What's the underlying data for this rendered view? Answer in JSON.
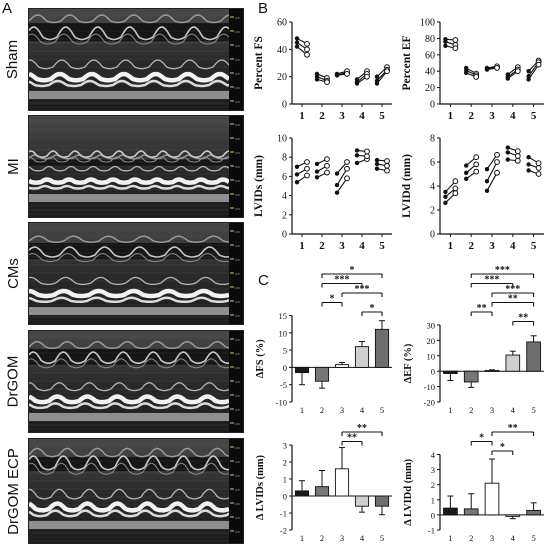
{
  "panels": {
    "a": "A",
    "b": "B",
    "c": "C"
  },
  "echo_images": [
    {
      "label": "Sham"
    },
    {
      "label": "MI"
    },
    {
      "label": "CMs"
    },
    {
      "label": "DrGOM"
    },
    {
      "label": "DrGOM ECP"
    }
  ],
  "chart_data": [
    {
      "type": "scatter",
      "panel": "B",
      "ylabel": "Percent FS",
      "ylim": [
        0,
        60
      ],
      "yticks": [
        0,
        20,
        40,
        60
      ],
      "categories": [
        "1",
        "2",
        "3",
        "4",
        "5"
      ],
      "pairs": [
        {
          "group": 1,
          "before": [
            48,
            45,
            42
          ],
          "after": [
            44,
            40,
            36
          ]
        },
        {
          "group": 2,
          "before": [
            22,
            20,
            18
          ],
          "after": [
            19,
            17,
            16
          ]
        },
        {
          "group": 3,
          "before": [
            21,
            22,
            21
          ],
          "after": [
            23,
            24,
            22
          ]
        },
        {
          "group": 4,
          "before": [
            18,
            16,
            15
          ],
          "after": [
            24,
            22,
            20
          ]
        },
        {
          "group": 5,
          "before": [
            20,
            17,
            15
          ],
          "after": [
            27,
            25,
            24
          ]
        }
      ]
    },
    {
      "type": "scatter",
      "panel": "B",
      "ylabel": "Percent EF",
      "ylim": [
        0,
        100
      ],
      "yticks": [
        0,
        20,
        40,
        60,
        80,
        100
      ],
      "categories": [
        "1",
        "2",
        "3",
        "4",
        "5"
      ],
      "pairs": [
        {
          "group": 1,
          "before": [
            79,
            76,
            71
          ],
          "after": [
            78,
            72,
            68
          ]
        },
        {
          "group": 2,
          "before": [
            44,
            41,
            38
          ],
          "after": [
            37,
            35,
            33
          ]
        },
        {
          "group": 3,
          "before": [
            43,
            44,
            42
          ],
          "after": [
            45,
            46,
            44
          ]
        },
        {
          "group": 4,
          "before": [
            36,
            33,
            31
          ],
          "after": [
            45,
            42,
            40
          ]
        },
        {
          "group": 5,
          "before": [
            40,
            34,
            30
          ],
          "after": [
            53,
            51,
            48
          ]
        }
      ]
    },
    {
      "type": "scatter",
      "panel": "B",
      "ylabel": "LVIDs (mm)",
      "ylim": [
        0,
        10
      ],
      "yticks": [
        0,
        2,
        4,
        6,
        8,
        10
      ],
      "categories": [
        "1",
        "2",
        "3",
        "4",
        "5"
      ],
      "pairs": [
        {
          "group": 1,
          "before": [
            5.4,
            6.2,
            7.0
          ],
          "after": [
            6.1,
            6.8,
            7.5
          ]
        },
        {
          "group": 2,
          "before": [
            5.9,
            6.5,
            7.3
          ],
          "after": [
            6.4,
            7.1,
            7.8
          ]
        },
        {
          "group": 3,
          "before": [
            4.3,
            5.1,
            6.3
          ],
          "after": [
            5.8,
            6.8,
            7.5
          ]
        },
        {
          "group": 4,
          "before": [
            7.4,
            8.2,
            8.7
          ],
          "after": [
            7.8,
            8.1,
            8.6
          ]
        },
        {
          "group": 5,
          "before": [
            7.7,
            7.3,
            6.8
          ],
          "after": [
            7.6,
            7.1,
            6.6
          ]
        }
      ]
    },
    {
      "type": "scatter",
      "panel": "B",
      "ylabel": "LVIDd (mm)",
      "ylim": [
        0,
        8
      ],
      "yticks": [
        0,
        2,
        4,
        6,
        8
      ],
      "categories": [
        "1",
        "2",
        "3",
        "4",
        "5"
      ],
      "pairs": [
        {
          "group": 1,
          "before": [
            2.6,
            3.1,
            3.5
          ],
          "after": [
            3.4,
            3.8,
            4.4
          ]
        },
        {
          "group": 2,
          "before": [
            4.6,
            5.1,
            5.7
          ],
          "after": [
            5.2,
            5.8,
            6.4
          ]
        },
        {
          "group": 3,
          "before": [
            3.6,
            4.4,
            5.4
          ],
          "after": [
            5.1,
            6.0,
            6.6
          ]
        },
        {
          "group": 4,
          "before": [
            7.2,
            6.8,
            6.2
          ],
          "after": [
            6.9,
            6.5,
            6.1
          ]
        },
        {
          "group": 5,
          "before": [
            6.4,
            5.8,
            5.3
          ],
          "after": [
            5.9,
            5.5,
            5.0
          ]
        }
      ]
    },
    {
      "type": "bar",
      "panel": "C",
      "ylabel": "ΔFS (%)",
      "ylim": [
        -10,
        15
      ],
      "yticks": [
        -10,
        -5,
        0,
        5,
        10,
        15
      ],
      "categories": [
        "1",
        "2",
        "3",
        "4",
        "5"
      ],
      "values": [
        -1.5,
        -4.0,
        0.8,
        6.0,
        11.0
      ],
      "errors": [
        3.5,
        2.0,
        0.6,
        1.5,
        2.5
      ],
      "colors": [
        "#1a1a1a",
        "#777777",
        "#ffffff",
        "#cfcfcf",
        "#6e6e6e"
      ],
      "significance": [
        {
          "from": 2,
          "to": 3,
          "label": "*"
        },
        {
          "from": 2,
          "to": 4,
          "label": "***"
        },
        {
          "from": 2,
          "to": 5,
          "label": "*"
        },
        {
          "from": 3,
          "to": 5,
          "label": "***"
        },
        {
          "from": 4,
          "to": 5,
          "label": "*"
        }
      ]
    },
    {
      "type": "bar",
      "panel": "C",
      "ylabel": "ΔEF (%)",
      "ylim": [
        -20,
        30
      ],
      "yticks": [
        -20,
        -10,
        0,
        10,
        20,
        30
      ],
      "categories": [
        "1",
        "2",
        "3",
        "4",
        "5"
      ],
      "values": [
        -1.5,
        -7.0,
        0.5,
        10.5,
        19.0
      ],
      "errors": [
        4.5,
        3.5,
        0.4,
        2.5,
        4.0
      ],
      "colors": [
        "#1a1a1a",
        "#777777",
        "#ffffff",
        "#cfcfcf",
        "#6e6e6e"
      ],
      "significance": [
        {
          "from": 2,
          "to": 3,
          "label": "**"
        },
        {
          "from": 2,
          "to": 4,
          "label": "***"
        },
        {
          "from": 2,
          "to": 5,
          "label": "***"
        },
        {
          "from": 3,
          "to": 5,
          "label": "**"
        },
        {
          "from": 3,
          "to": 5,
          "label": "***"
        },
        {
          "from": 4,
          "to": 5,
          "label": "**"
        }
      ]
    },
    {
      "type": "bar",
      "panel": "C",
      "ylabel": "Δ LVIDs (mm)",
      "ylim": [
        -2,
        3
      ],
      "yticks": [
        -2,
        -1,
        0,
        1,
        2,
        3
      ],
      "categories": [
        "1",
        "2",
        "3",
        "4",
        "5"
      ],
      "values": [
        0.3,
        0.55,
        1.6,
        -0.6,
        -0.6
      ],
      "errors": [
        0.6,
        0.95,
        1.25,
        0.35,
        0.5
      ],
      "colors": [
        "#1a1a1a",
        "#777777",
        "#ffffff",
        "#cfcfcf",
        "#6e6e6e"
      ],
      "significance": [
        {
          "from": 3,
          "to": 4,
          "label": "**"
        },
        {
          "from": 3,
          "to": 5,
          "label": "**"
        }
      ]
    },
    {
      "type": "bar",
      "panel": "C",
      "ylabel": "Δ LVIDd (mm)",
      "ylim": [
        -1,
        4
      ],
      "yticks": [
        -1,
        0,
        1,
        2,
        3,
        4
      ],
      "categories": [
        "1",
        "2",
        "3",
        "4",
        "5"
      ],
      "values": [
        0.45,
        0.4,
        2.1,
        -0.1,
        0.3
      ],
      "errors": [
        0.8,
        1.0,
        1.6,
        0.15,
        0.5
      ],
      "colors": [
        "#1a1a1a",
        "#777777",
        "#ffffff",
        "#cfcfcf",
        "#6e6e6e"
      ],
      "significance": [
        {
          "from": 2,
          "to": 3,
          "label": "*"
        },
        {
          "from": 3,
          "to": 4,
          "label": "*"
        },
        {
          "from": 3,
          "to": 5,
          "label": "**"
        }
      ]
    }
  ]
}
